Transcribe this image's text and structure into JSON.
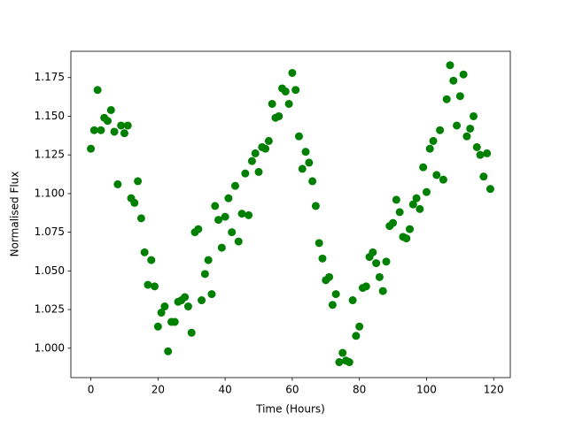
{
  "chart_data": {
    "type": "scatter",
    "xlabel": "Time (Hours)",
    "ylabel": "Normalised Flux",
    "color": "#008000",
    "x": [
      0,
      1,
      2,
      3,
      4,
      5,
      6,
      7,
      8,
      9,
      10,
      11,
      12,
      13,
      14,
      15,
      16,
      17,
      18,
      19,
      20,
      21,
      22,
      23,
      24,
      25,
      26,
      27,
      28,
      29,
      30,
      31,
      32,
      33,
      34,
      35,
      36,
      37,
      38,
      39,
      40,
      41,
      42,
      43,
      44,
      45,
      46,
      47,
      48,
      49,
      50,
      51,
      52,
      53,
      54,
      55,
      56,
      57,
      58,
      59,
      60,
      61,
      62,
      63,
      64,
      65,
      66,
      67,
      68,
      69,
      70,
      71,
      72,
      73,
      74,
      75,
      76,
      77,
      78,
      79,
      80,
      81,
      82,
      83,
      84,
      85,
      86,
      87,
      88,
      89,
      90,
      91,
      92,
      93,
      94,
      95,
      96,
      97,
      98,
      99,
      100,
      101,
      102,
      103,
      104,
      105,
      106,
      107,
      108,
      109,
      110,
      111,
      112,
      113,
      114,
      115,
      116,
      117,
      118,
      119
    ],
    "values": [
      1.129,
      1.141,
      1.167,
      1.141,
      1.149,
      1.147,
      1.154,
      1.14,
      1.106,
      1.144,
      1.139,
      1.144,
      1.097,
      1.094,
      1.108,
      1.084,
      1.062,
      1.041,
      1.057,
      1.04,
      1.014,
      1.023,
      1.027,
      0.998,
      1.017,
      1.017,
      1.03,
      1.031,
      1.033,
      1.027,
      1.01,
      1.075,
      1.077,
      1.031,
      1.048,
      1.057,
      1.035,
      1.092,
      1.083,
      1.065,
      1.085,
      1.097,
      1.075,
      1.105,
      1.069,
      1.087,
      1.113,
      1.086,
      1.121,
      1.126,
      1.114,
      1.13,
      1.129,
      1.134,
      1.158,
      1.149,
      1.15,
      1.168,
      1.166,
      1.158,
      1.178,
      1.167,
      1.137,
      1.116,
      1.127,
      1.12,
      1.108,
      1.092,
      1.068,
      1.058,
      1.044,
      1.046,
      1.028,
      1.035,
      0.991,
      0.997,
      0.992,
      0.991,
      1.031,
      1.008,
      1.014,
      1.039,
      1.04,
      1.059,
      1.062,
      1.055,
      1.046,
      1.037,
      1.056,
      1.079,
      1.081,
      1.096,
      1.088,
      1.072,
      1.071,
      1.077,
      1.093,
      1.097,
      1.09,
      1.117,
      1.101,
      1.129,
      1.134,
      1.112,
      1.141,
      1.109,
      1.161,
      1.183,
      1.173,
      1.144,
      1.163,
      1.177,
      1.137,
      1.142,
      1.15,
      1.13,
      1.125,
      1.111,
      1.126,
      1.103
    ],
    "xlim": [
      -5.95,
      124.95
    ],
    "xticks": [
      0,
      20,
      40,
      60,
      80,
      100,
      120
    ],
    "ylim": [
      0.981,
      1.192
    ],
    "yticks": [
      {
        "value": 1.0,
        "label": "1.000"
      },
      {
        "value": 1.025,
        "label": "1.025"
      },
      {
        "value": 1.05,
        "label": "1.050"
      },
      {
        "value": 1.075,
        "label": "1.075"
      },
      {
        "value": 1.1,
        "label": "1.100"
      },
      {
        "value": 1.125,
        "label": "1.125"
      },
      {
        "value": 1.15,
        "label": "1.150"
      },
      {
        "value": 1.175,
        "label": "1.175"
      }
    ],
    "grid": false
  }
}
